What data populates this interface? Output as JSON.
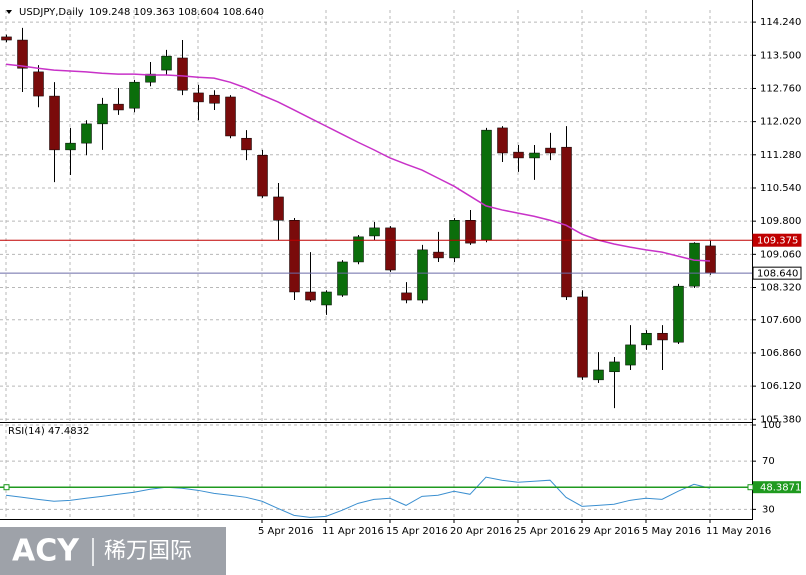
{
  "chart_data": [
    {
      "type": "candlestick",
      "title": "USDJPY,Daily",
      "ohlc_text": "109.248 109.363 108.604 108.640",
      "categories": [
        null,
        null,
        null,
        null,
        null,
        null,
        null,
        null,
        null,
        null,
        null,
        null,
        null,
        null,
        null,
        null,
        "5 Apr 2016",
        null,
        null,
        null,
        "11 Apr 2016",
        null,
        null,
        null,
        "15 Apr 2016",
        null,
        null,
        null,
        "20 Apr 2016",
        null,
        null,
        null,
        "25 Apr 2016",
        null,
        null,
        null,
        "29 Apr 2016",
        null,
        null,
        null,
        "5 May 2016",
        null,
        null,
        null,
        "11 May 2016"
      ],
      "open": [
        113.91,
        113.84,
        113.13,
        112.59,
        111.39,
        111.54,
        111.97,
        112.41,
        112.32,
        112.9,
        113.17,
        113.44,
        112.66,
        112.61,
        112.57,
        111.65,
        111.27,
        110.34,
        109.82,
        108.22,
        107.93,
        108.15,
        108.89,
        109.47,
        109.65,
        108.2,
        108.04,
        109.11,
        108.98,
        109.82,
        109.38,
        111.88,
        111.34,
        111.21,
        111.43,
        111.45,
        108.11,
        106.26,
        106.44,
        106.59,
        107.04,
        107.3,
        107.1,
        108.35,
        109.248
      ],
      "high": [
        113.96,
        114.11,
        113.28,
        112.9,
        111.88,
        112.05,
        112.55,
        112.77,
        112.95,
        113.35,
        113.62,
        113.84,
        112.84,
        112.72,
        112.61,
        111.83,
        111.39,
        110.65,
        109.87,
        109.11,
        108.26,
        108.93,
        109.49,
        109.78,
        109.69,
        108.44,
        109.27,
        109.56,
        109.87,
        110.05,
        111.88,
        111.92,
        111.5,
        111.5,
        111.77,
        111.92,
        108.26,
        106.88,
        106.77,
        107.48,
        107.37,
        107.48,
        108.4,
        109.33,
        109.363
      ],
      "low": [
        113.79,
        112.68,
        112.34,
        110.67,
        110.83,
        111.27,
        111.39,
        112.17,
        112.23,
        112.81,
        113.06,
        112.61,
        112.05,
        112.28,
        111.65,
        111.16,
        110.32,
        109.38,
        108.04,
        108.0,
        107.71,
        108.11,
        108.84,
        109.38,
        108.67,
        107.97,
        107.97,
        108.89,
        108.89,
        109.27,
        109.33,
        111.12,
        110.9,
        110.72,
        111.16,
        108.04,
        106.26,
        106.19,
        105.63,
        106.48,
        106.93,
        106.48,
        107.06,
        108.31,
        108.604
      ],
      "close": [
        113.84,
        113.21,
        112.59,
        111.39,
        111.54,
        111.97,
        112.41,
        112.28,
        112.9,
        113.08,
        113.48,
        112.72,
        112.46,
        112.43,
        111.7,
        111.39,
        110.36,
        109.82,
        108.22,
        108.04,
        108.22,
        108.89,
        109.45,
        109.65,
        108.71,
        108.04,
        109.16,
        108.98,
        109.82,
        109.31,
        111.83,
        111.32,
        111.21,
        111.32,
        111.32,
        108.11,
        106.32,
        106.48,
        106.66,
        107.04,
        107.3,
        107.15,
        108.35,
        109.31,
        108.64
      ],
      "colors": {
        "up": "#0b6e0b",
        "down": "#7a0b0b",
        "wick": "#000000"
      },
      "overlay": {
        "color": "#c832c8",
        "values": [
          113.3,
          113.26,
          113.21,
          113.17,
          113.15,
          113.13,
          113.1,
          113.08,
          113.08,
          113.06,
          113.06,
          113.04,
          113.01,
          112.99,
          112.9,
          112.77,
          112.61,
          112.46,
          112.28,
          112.1,
          111.92,
          111.74,
          111.56,
          111.39,
          111.21,
          111.07,
          110.94,
          110.76,
          110.58,
          110.36,
          110.14,
          110.05,
          109.98,
          109.91,
          109.82,
          109.71,
          109.51,
          109.38,
          109.29,
          109.22,
          109.16,
          109.11,
          109.02,
          108.93,
          108.91
        ]
      },
      "hlines": [
        {
          "value": 109.375,
          "label": "109.375",
          "color": "#c00000"
        },
        {
          "value": 108.64,
          "label": "108.640",
          "color": "#6b6ba8"
        }
      ],
      "ylim": [
        105.32,
        114.51
      ],
      "yticks": [
        {
          "value": 114.24,
          "label": "114.240"
        },
        {
          "value": 113.5,
          "label": "113.500"
        },
        {
          "value": 112.76,
          "label": "112.760"
        },
        {
          "value": 112.02,
          "label": "112.020"
        },
        {
          "value": 111.28,
          "label": "111.280"
        },
        {
          "value": 110.54,
          "label": "110.540"
        },
        {
          "value": 109.8,
          "label": "109.800"
        },
        {
          "value": 109.06,
          "label": "109.060"
        },
        {
          "value": 108.32,
          "label": "108.320"
        },
        {
          "value": 107.6,
          "label": "107.600"
        },
        {
          "value": 106.86,
          "label": "106.860"
        },
        {
          "value": 106.12,
          "label": "106.120"
        },
        {
          "value": 105.38,
          "label": "105.380"
        }
      ],
      "grid": true
    },
    {
      "type": "line",
      "title": "RSI(14) 47.4832",
      "color": "#3b8fd0",
      "values": [
        41.7,
        40.0,
        38.3,
        36.7,
        37.5,
        39.2,
        40.8,
        42.5,
        44.2,
        46.7,
        48.3,
        47.5,
        45.8,
        43.3,
        41.7,
        40.0,
        36.7,
        30.8,
        25.0,
        23.3,
        24.2,
        29.2,
        35.0,
        38.3,
        39.2,
        33.3,
        40.8,
        41.7,
        45.0,
        42.5,
        56.7,
        54.2,
        52.5,
        53.3,
        54.2,
        40.0,
        32.5,
        33.3,
        34.2,
        37.5,
        39.2,
        38.3,
        45.0,
        50.8,
        47.4832
      ],
      "hline": {
        "value": 48.3871,
        "label": "48.3871",
        "color": "#1f9a1f"
      },
      "ylim": [
        22,
        100
      ],
      "yticks": [
        100,
        70,
        30
      ],
      "grid": true
    }
  ],
  "watermark": {
    "brand": "ACY",
    "name": "稀万国际"
  }
}
